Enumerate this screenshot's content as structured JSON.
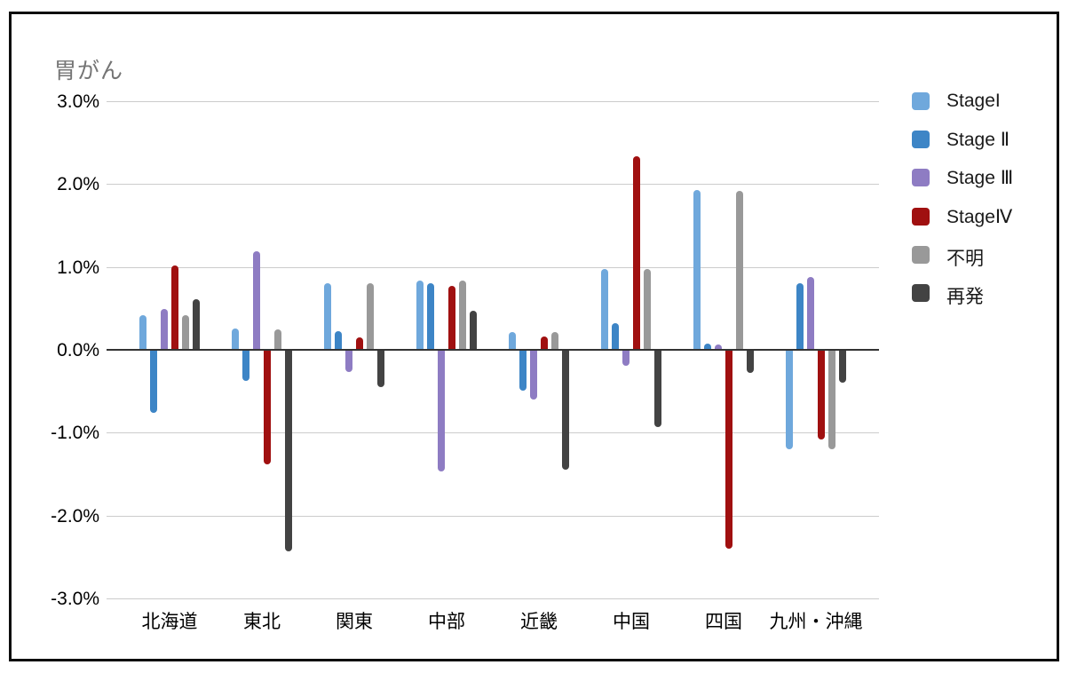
{
  "chart_data": {
    "type": "bar",
    "title": "胃がん",
    "categories": [
      "北海道",
      "東北",
      "関東",
      "中部",
      "近畿",
      "中国",
      "四国",
      "九州・沖縄"
    ],
    "series": [
      {
        "name": "StageI",
        "color": "#6FA8DC",
        "values": [
          0.42,
          0.26,
          0.8,
          0.83,
          0.21,
          0.97,
          1.93,
          -1.2
        ]
      },
      {
        "name": "Stage Ⅱ",
        "color": "#3D85C6",
        "values": [
          -0.76,
          -0.38,
          0.22,
          0.8,
          -0.49,
          0.32,
          0.08,
          0.8
        ]
      },
      {
        "name": "Stage Ⅲ",
        "color": "#8E7CC3",
        "values": [
          0.49,
          1.19,
          -0.27,
          -1.47,
          -0.6,
          -0.19,
          0.06,
          0.88
        ]
      },
      {
        "name": "StageⅣ",
        "color": "#A01010",
        "values": [
          1.02,
          -1.38,
          0.15,
          0.77,
          0.16,
          2.33,
          -2.4,
          -1.08
        ]
      },
      {
        "name": "不明",
        "color": "#999999",
        "values": [
          0.42,
          0.25,
          0.8,
          0.83,
          0.21,
          0.97,
          1.92,
          -1.2
        ]
      },
      {
        "name": "再発",
        "color": "#434343",
        "values": [
          0.61,
          -2.43,
          -0.45,
          0.47,
          -1.45,
          -0.93,
          -0.28,
          -0.4
        ]
      }
    ],
    "xlabel": "",
    "ylabel": "",
    "ylim": [
      -3,
      3
    ],
    "ytick_step": 1,
    "ytick_labels": [
      "3.0%",
      "2.0%",
      "1.0%",
      "0.0%",
      "-1.0%",
      "-2.0%",
      "-3.0%"
    ],
    "grid": true,
    "legend_position": "right"
  },
  "colors": {
    "grid": "#cccccc",
    "zero_axis": "#333333",
    "title_text": "#757575",
    "border": "#0d0d0d"
  }
}
